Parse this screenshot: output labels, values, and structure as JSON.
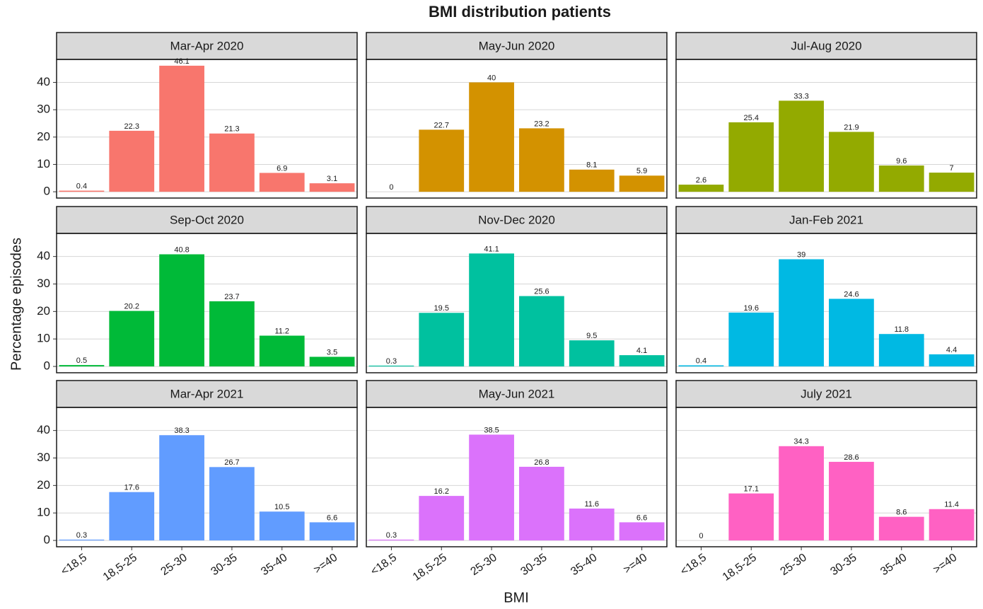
{
  "title": "BMI distribution patients",
  "x_label": "BMI",
  "y_label": "Percentage episodes",
  "categories": [
    "<18,5",
    "18,5-25",
    "25-30",
    "30-35",
    "35-40",
    ">=40"
  ],
  "ylim": [
    -2.3,
    48.4
  ],
  "yticks": [
    0,
    10,
    20,
    30,
    40
  ],
  "grid": true,
  "chart_data": [
    {
      "type": "bar",
      "title": "Mar-Apr 2020",
      "color": "#F8766D",
      "values": [
        0.4,
        22.3,
        46.1,
        21.3,
        6.9,
        3.1
      ]
    },
    {
      "type": "bar",
      "title": "May-Jun 2020",
      "color": "#D39200",
      "values": [
        0,
        22.7,
        40,
        23.2,
        8.1,
        5.9
      ]
    },
    {
      "type": "bar",
      "title": "Jul-Aug 2020",
      "color": "#93AA00",
      "values": [
        2.6,
        25.4,
        33.3,
        21.9,
        9.6,
        7
      ]
    },
    {
      "type": "bar",
      "title": "Sep-Oct 2020",
      "color": "#00BA38",
      "values": [
        0.5,
        20.2,
        40.8,
        23.7,
        11.2,
        3.5
      ]
    },
    {
      "type": "bar",
      "title": "Nov-Dec 2020",
      "color": "#00C19F",
      "values": [
        0.3,
        19.5,
        41.1,
        25.6,
        9.5,
        4.1
      ]
    },
    {
      "type": "bar",
      "title": "Jan-Feb 2021",
      "color": "#00B9E3",
      "values": [
        0.4,
        19.6,
        39,
        24.6,
        11.8,
        4.4
      ]
    },
    {
      "type": "bar",
      "title": "Mar-Apr 2021",
      "color": "#619CFF",
      "values": [
        0.3,
        17.6,
        38.3,
        26.7,
        10.5,
        6.6
      ]
    },
    {
      "type": "bar",
      "title": "May-Jun 2021",
      "color": "#DB72FB",
      "values": [
        0.3,
        16.2,
        38.5,
        26.8,
        11.6,
        6.6
      ]
    },
    {
      "type": "bar",
      "title": "July 2021",
      "color": "#FF61C3",
      "values": [
        0,
        17.1,
        34.3,
        28.6,
        8.6,
        11.4
      ]
    }
  ]
}
